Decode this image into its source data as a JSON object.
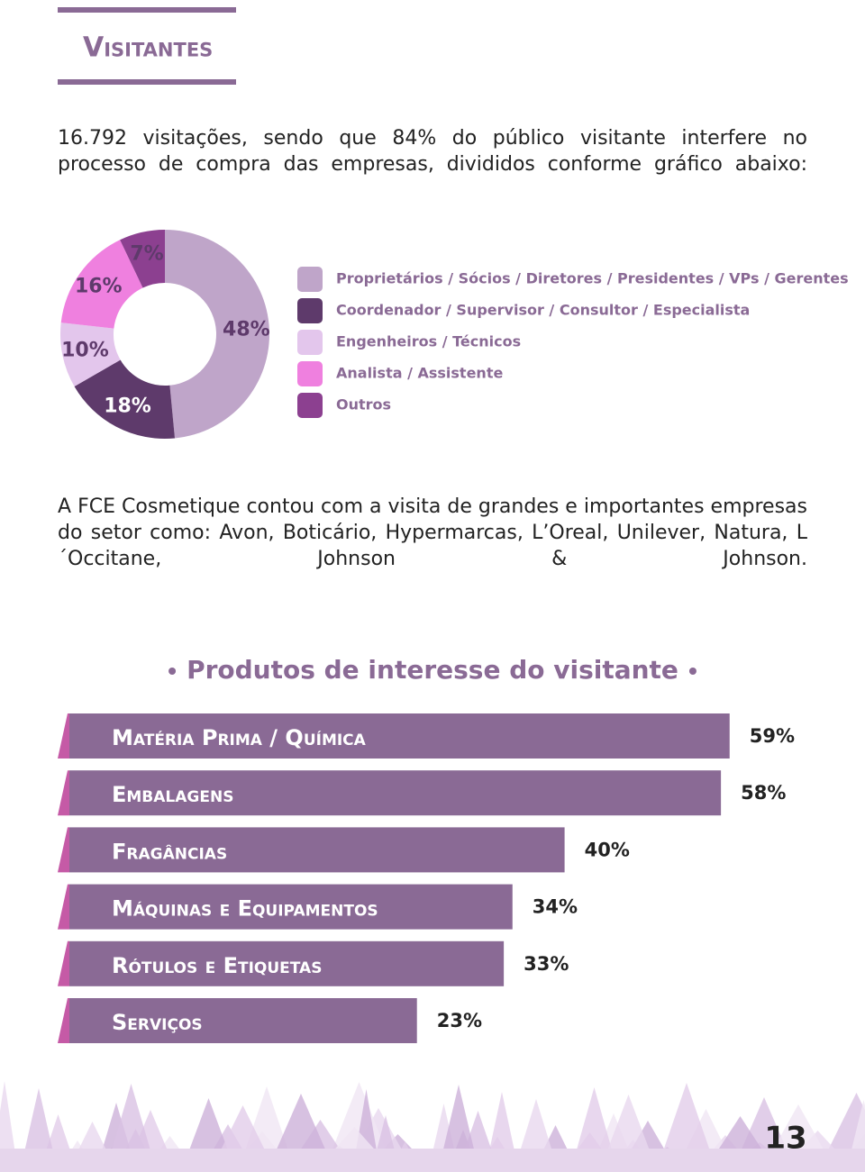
{
  "header": {
    "title": "Visitantes"
  },
  "intro": "16.792 visitações, sendo que 84% do público visitante interfere no processo de compra das empresas, divididos conforme gráfico abaixo:",
  "body": "A FCE Cosmetique contou com a visita de grandes e importantes empresas do setor como: Avon, Boticário, Hypermarcas, L’Oreal, Unilever, Natura, L´Occitane, Johnson & Johnson.",
  "chart_data": [
    {
      "type": "pie",
      "categories": [
        "Proprietários / Sócios / Diretores / Presidentes / VPs / Gerentes",
        "Coordenador / Supervisor / Consultor / Especialista",
        "Engenheiros / Técnicos",
        "Analista / Assistente",
        "Outros"
      ],
      "values": [
        48,
        18,
        10,
        16,
        7
      ],
      "value_labels": [
        "48%",
        "18%",
        "10%",
        "16%",
        "7%"
      ],
      "colors": [
        "#bfa5c9",
        "#5e3a6b",
        "#e3c6ec",
        "#ef80df",
        "#8c4090"
      ]
    },
    {
      "type": "bar",
      "title": "Produtos de interesse do visitante",
      "categories": [
        "Matéria Prima / Química",
        "Embalagens",
        "Fragâncias",
        "Máquinas e Equipamentos",
        "Rótulos e Etiquetas",
        "Serviços"
      ],
      "values": [
        59,
        58,
        40,
        34,
        33,
        23
      ],
      "value_labels": [
        "59%",
        "58%",
        "40%",
        "34%",
        "33%",
        "23%"
      ],
      "color": "#8a6a95"
    }
  ],
  "page_number": "13"
}
